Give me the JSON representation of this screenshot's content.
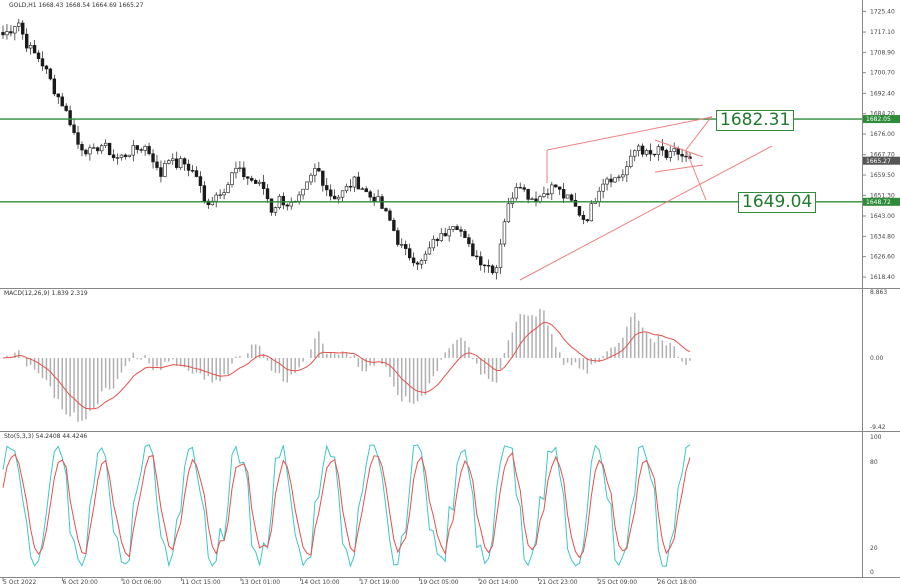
{
  "header": {
    "main": "GOLD,H1  1668.43 1668.54 1664.69 1665.27",
    "macd": "MACD(12,26,9) 1.839 2.319",
    "stoch": "Sto(5,3,3) 54.2408 44.4246"
  },
  "callouts": {
    "upper": "1682.31",
    "lower": "1649.04"
  },
  "level_labels": {
    "upper": "1682.05",
    "lower": "1648.72",
    "current": "1665.27"
  },
  "price_axis": [
    "1725.40",
    "1717.10",
    "1708.90",
    "1700.70",
    "1692.40",
    "1684.20",
    "1676.00",
    "1667.70",
    "1659.50",
    "1651.30",
    "1643.00",
    "1634.80",
    "1626.60",
    "1618.40"
  ],
  "macd_axis": [
    "8.863",
    "0.00",
    "-9.42"
  ],
  "stoch_axis": [
    "100",
    "80",
    "20",
    "0"
  ],
  "time_axis": [
    "5 Oct 2022",
    "6 Oct 20:00",
    "10 Oct 06:00",
    "11 Oct 15:00",
    "13 Oct 01:00",
    "14 Oct 10:00",
    "17 Oct 19:00",
    "19 Oct 05:00",
    "20 Oct 14:00",
    "21 Oct 23:00",
    "25 Oct 09:00",
    "26 Oct 18:00"
  ],
  "colors": {
    "level_line": "#2e8b3a",
    "trend_line": "#f08080",
    "up": "#ffffff",
    "down": "#1a1a1a",
    "signal": "#e8504a",
    "stoch_main": "#3cc7c7",
    "hist": "#b0b0b0"
  },
  "chart_data": {
    "type": "candlestick",
    "symbol": "GOLD",
    "timeframe": "H1",
    "support_level": 1648.72,
    "resistance_level": 1682.05,
    "close_path": [
      1716,
      1718,
      1722,
      1713,
      1709,
      1706,
      1700,
      1693,
      1688,
      1681,
      1672,
      1670,
      1668,
      1672,
      1670,
      1666,
      1667,
      1669,
      1670,
      1671,
      1667,
      1658,
      1668,
      1663,
      1665,
      1662,
      1659,
      1648,
      1650,
      1653,
      1655,
      1662,
      1660,
      1658,
      1656,
      1654,
      1645,
      1650,
      1648,
      1647,
      1651,
      1657,
      1663,
      1656,
      1651,
      1651,
      1654,
      1657,
      1655,
      1651,
      1650,
      1645,
      1640,
      1632,
      1628,
      1626,
      1624,
      1629,
      1634,
      1635,
      1641,
      1639,
      1632,
      1628,
      1625,
      1623,
      1621,
      1640,
      1650,
      1658,
      1652,
      1650,
      1651,
      1654,
      1655,
      1651,
      1649,
      1645,
      1641,
      1648,
      1656,
      1659,
      1658,
      1660,
      1665,
      1672,
      1668,
      1667,
      1670,
      1666,
      1669,
      1667,
      1665
    ]
  }
}
